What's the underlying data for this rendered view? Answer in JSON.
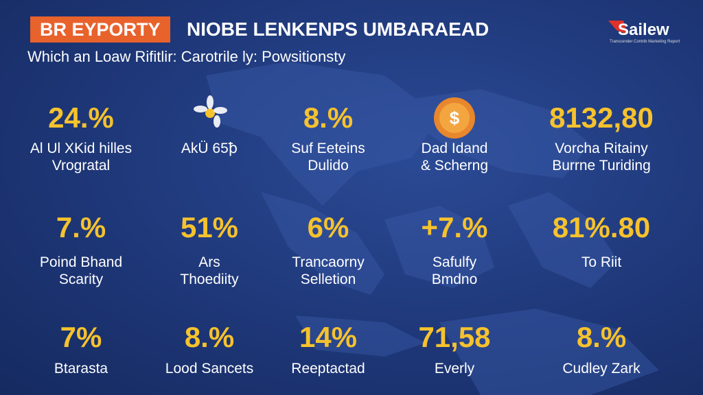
{
  "header": {
    "tag": "BR EYPORTY",
    "title": "NIOBE LENKENPS UMBARAEAD",
    "subtitle": "Which an Loaw Rifitlir: Carotrile ly: Powsitionsty",
    "logo": "Sailew",
    "logo_tagline": "Transcender Contrib Marketing Report"
  },
  "stats": [
    [
      {
        "value": "24.%",
        "label": [
          "Al Ul XKid hilles",
          "Vrogratal"
        ]
      },
      {
        "label": [
          "AkÜ 65ꝥ"
        ]
      },
      {
        "value": "8.%",
        "label": [
          "Suf Eeteins",
          "Dulido"
        ]
      },
      {
        "label": [
          "Dad Idand",
          "& Scherng"
        ]
      },
      {
        "value": "8132,80",
        "label": [
          "Vorcha Ritainy",
          "Burrne Turiding"
        ]
      }
    ],
    [
      {
        "value": "7.%",
        "label": [
          "Poind Bhand",
          "Scarity"
        ]
      },
      {
        "value": "51%",
        "label": [
          "Ars",
          "Thoediity"
        ]
      },
      {
        "value": "6%",
        "label": [
          "Trancaorny",
          "Selletion"
        ]
      },
      {
        "value": "+7.%",
        "label": [
          "Safulfy",
          "Bmdno"
        ]
      },
      {
        "value": "81%.80",
        "label": [
          "To Riit"
        ]
      }
    ],
    [
      {
        "value": "7%",
        "label": [
          "Btarasta"
        ]
      },
      {
        "value": "8.%",
        "label": [
          "Lood Sancets"
        ]
      },
      {
        "value": "14%",
        "label": [
          "Reeptactad"
        ]
      },
      {
        "value": "71,58",
        "label": [
          "Everly"
        ]
      },
      {
        "value": "8.%",
        "label": [
          "Cudley Zark"
        ]
      }
    ]
  ]
}
